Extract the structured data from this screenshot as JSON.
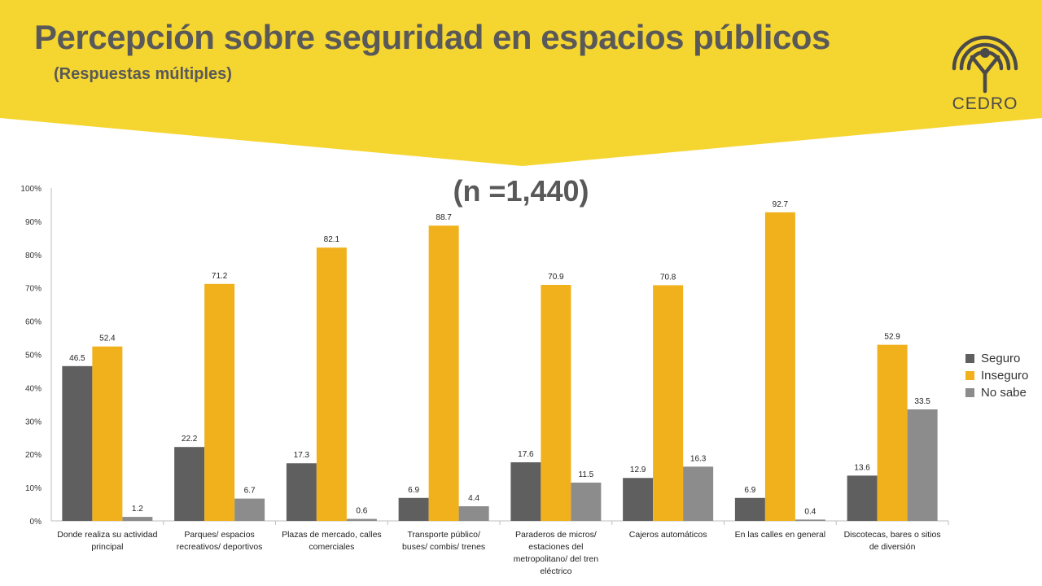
{
  "header": {
    "title": "Percepción sobre seguridad en espacios públicos",
    "subtitle": "(Respuestas múltiples)",
    "sample_label": "(n =1,440)",
    "logo_text": "CEDRO"
  },
  "colors": {
    "banner": "#F5D530",
    "title_text": "#595959",
    "Seguro": "#5F5F5F",
    "Inseguro": "#F0B11C",
    "No sabe": "#8C8C8C"
  },
  "chart_data": {
    "type": "bar",
    "y_unit": "%",
    "ylim": [
      0,
      100
    ],
    "y_ticks": [
      "0%",
      "10%",
      "20%",
      "30%",
      "40%",
      "50%",
      "60%",
      "70%",
      "80%",
      "90%",
      "100%"
    ],
    "grid": false,
    "legend_position": "right",
    "categories": [
      [
        "Donde realiza su actividad",
        "principal"
      ],
      [
        "Parques/ espacios",
        "recreativos/ deportivos"
      ],
      [
        "Plazas de mercado, calles",
        "comerciales"
      ],
      [
        "Transporte público/",
        "buses/ combis/ trenes"
      ],
      [
        "Paraderos de micros/",
        "estaciones del",
        "metropolitano/ del tren",
        "eléctrico"
      ],
      [
        "Cajeros automáticos"
      ],
      [
        "En las calles en general"
      ],
      [
        "Discotecas, bares o sitios",
        "de diversión"
      ]
    ],
    "series": [
      {
        "name": "Seguro",
        "values": [
          46.5,
          22.2,
          17.3,
          6.9,
          17.6,
          12.9,
          6.9,
          13.6
        ]
      },
      {
        "name": "Inseguro",
        "values": [
          52.4,
          71.2,
          82.1,
          88.7,
          70.9,
          70.8,
          92.7,
          52.9
        ]
      },
      {
        "name": "No sabe",
        "values": [
          1.2,
          6.7,
          0.6,
          4.4,
          11.5,
          16.3,
          0.4,
          33.5
        ]
      }
    ]
  }
}
